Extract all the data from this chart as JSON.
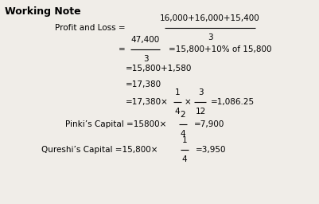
{
  "bg_color": "#f0ede8",
  "title": "Working Note",
  "font_size_title": 9,
  "font_size_body": 7.5,
  "title_bold": true,
  "lines": [
    {
      "row": 1,
      "prefix": "Profit and Loss =",
      "num": "16,000+16,000+15,400",
      "den": "3",
      "suffix": ""
    },
    {
      "row": 2,
      "prefix": "=",
      "num": "47,400",
      "den": "3",
      "suffix": "=15,800+10% of 15,800"
    },
    {
      "row": 3,
      "plain": "=15,800+1,580"
    },
    {
      "row": 4,
      "plain": "=17,380"
    },
    {
      "row": 5,
      "prefix": "=17,380×",
      "num1": "1",
      "den1": "4",
      "mid": "×",
      "num2": "3",
      "den2": "12",
      "suffix": "=1,086.25"
    },
    {
      "row": 6,
      "prefix": "Pinki’s Capital =15800×",
      "num": "2",
      "den": "4",
      "suffix": "=7,900"
    },
    {
      "row": 7,
      "prefix": "Qureshi’s Capital =15,800×",
      "num": "1",
      "den": "4",
      "suffix": "=3,950"
    }
  ]
}
